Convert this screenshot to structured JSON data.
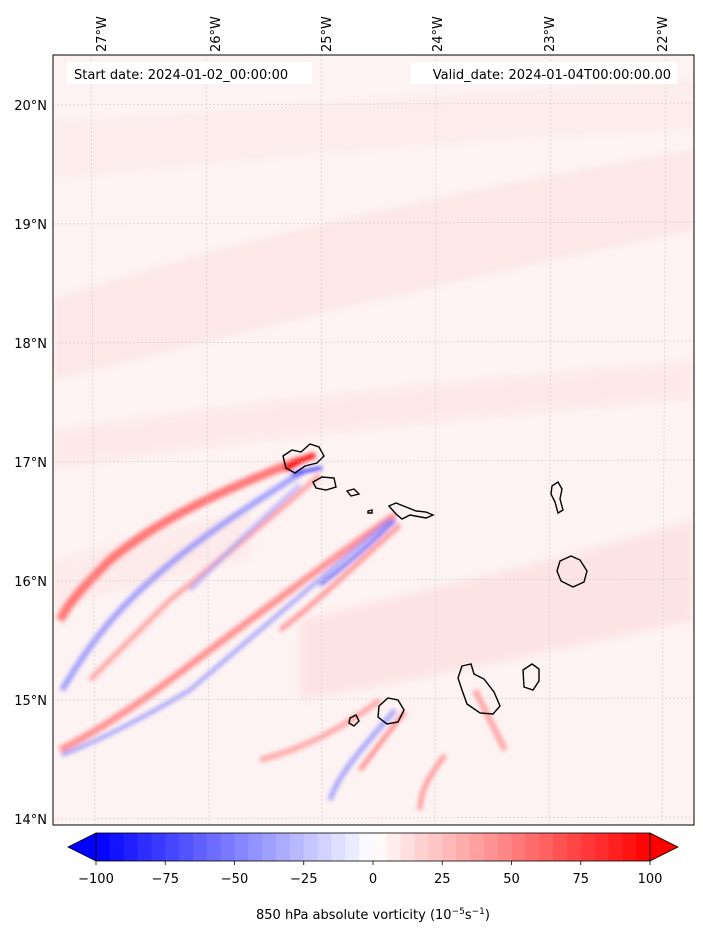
{
  "map": {
    "start_label": "Start date: 2024-01-02_00:00:00",
    "valid_label": "Valid_date: 2024-01-04T00:00:00.00",
    "lon_ticks": [
      "27°W",
      "26°W",
      "25°W",
      "24°W",
      "23°W",
      "22°W"
    ],
    "lat_ticks": [
      "20°N",
      "19°N",
      "18°N",
      "17°N",
      "16°N",
      "15°N",
      "14°N"
    ],
    "field": "850 hPa absolute vorticity",
    "units": "10^-5 s^-1"
  },
  "colorbar": {
    "title": "850 hPa absolute vorticity (10",
    "exp1": "−5",
    "mid": "s",
    "exp2": "−1",
    "close": ")",
    "ticks": [
      "−100",
      "−75",
      "−50",
      "−25",
      "0",
      "25",
      "50",
      "75",
      "100"
    ],
    "min": -100,
    "max": 100,
    "levels": 40,
    "colors": {
      "negative": "#0000ff",
      "neutral": "#ffffff",
      "positive": "#ff0000"
    }
  }
}
